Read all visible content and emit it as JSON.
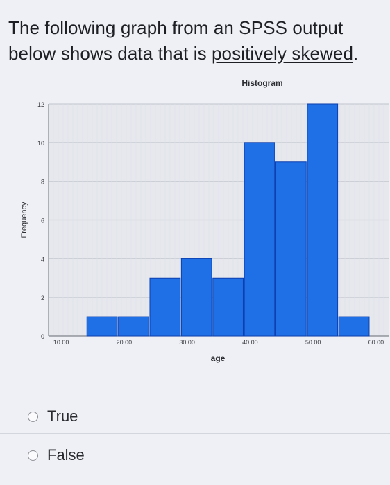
{
  "question": {
    "text_before": "The following graph from an SPSS output below shows data that is ",
    "text_underlined": "positively skewed",
    "text_after": "."
  },
  "options": [
    {
      "label": "True"
    },
    {
      "label": "False"
    }
  ],
  "chart_data": {
    "type": "bar",
    "title": "Histogram",
    "xlabel": "age",
    "ylabel": "Frequency",
    "ylim": [
      0,
      12
    ],
    "yticks": [
      "0",
      "2",
      "4",
      "6",
      "8",
      "10",
      "12"
    ],
    "xticks": [
      {
        "label": "10.00",
        "value": 10
      },
      {
        "label": "20.00",
        "value": 20
      },
      {
        "label": "30.00",
        "value": 30
      },
      {
        "label": "40.00",
        "value": 40
      },
      {
        "label": "50.00",
        "value": 50
      },
      {
        "label": "60.00",
        "value": 60
      }
    ],
    "xlim": [
      8,
      62
    ],
    "bins": [
      {
        "x0": 14,
        "x1": 19,
        "value": 1
      },
      {
        "x0": 19,
        "x1": 24,
        "value": 1
      },
      {
        "x0": 24,
        "x1": 29,
        "value": 3
      },
      {
        "x0": 29,
        "x1": 34,
        "value": 4
      },
      {
        "x0": 34,
        "x1": 39,
        "value": 3
      },
      {
        "x0": 39,
        "x1": 44,
        "value": 10
      },
      {
        "x0": 44,
        "x1": 49,
        "value": 9
      },
      {
        "x0": 49,
        "x1": 54,
        "value": 12
      },
      {
        "x0": 54,
        "x1": 59,
        "value": 1
      }
    ],
    "grid": true,
    "colors": {
      "bar": "#1f6fe6",
      "bar_edge": "#0d3fae",
      "grid": "#c9ccd3"
    }
  }
}
